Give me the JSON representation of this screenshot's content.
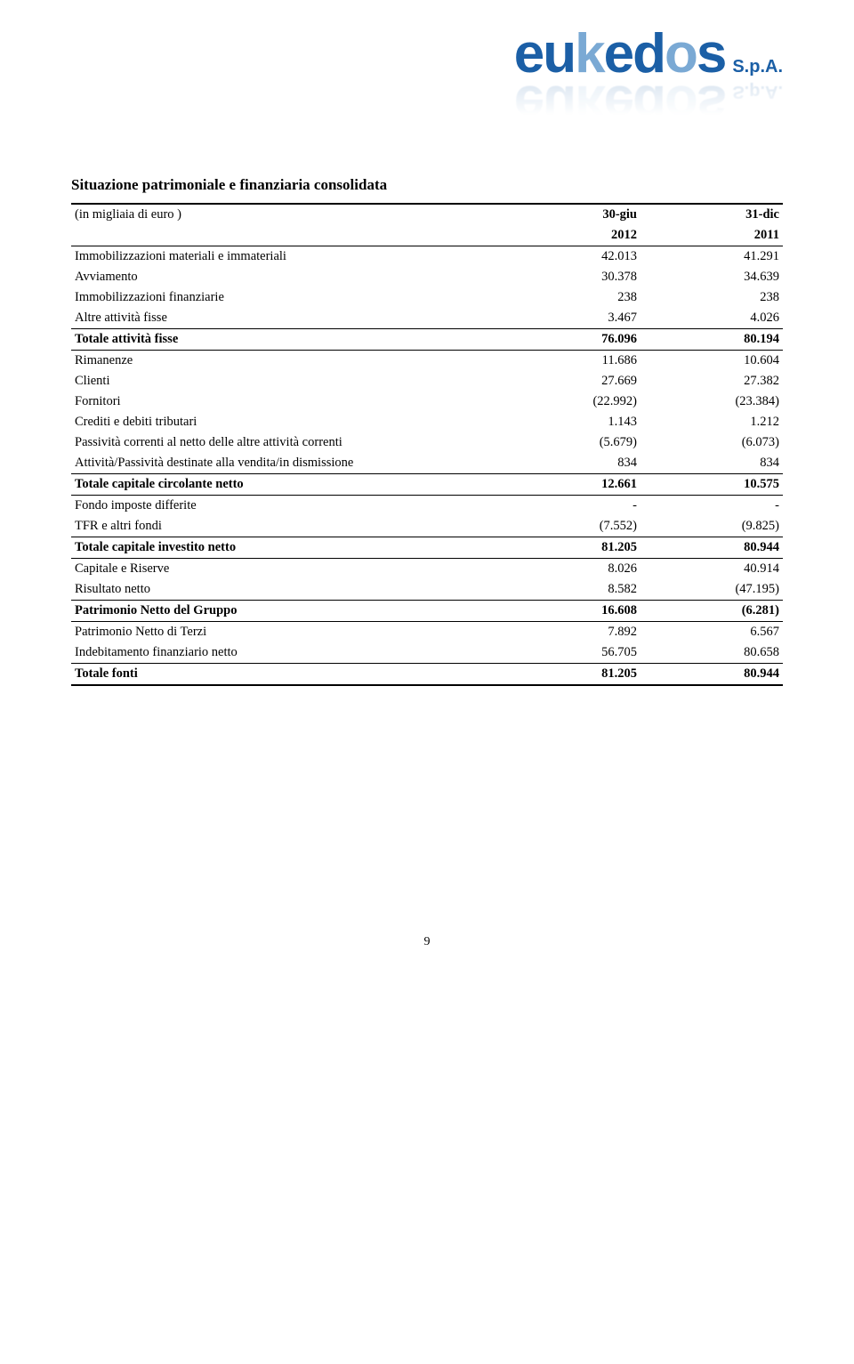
{
  "logo": {
    "name": "eukedos",
    "suffix": "S.p.A."
  },
  "title": "Situazione patrimoniale e finanziaria consolidata",
  "header": {
    "unit_label": "(in migliaia di euro )",
    "col1_top": "30-giu",
    "col2_top": "31-dic",
    "col1_yr": "2012",
    "col2_yr": "2011"
  },
  "rows": {
    "immob_mat": {
      "label": "Immobilizzazioni materiali e immateriali",
      "c1": "42.013",
      "c2": "41.291"
    },
    "avviamento": {
      "label": "Avviamento",
      "c1": "30.378",
      "c2": "34.639"
    },
    "immob_fin": {
      "label": "Immobilizzazioni finanziarie",
      "c1": "238",
      "c2": "238"
    },
    "altre_fisse": {
      "label": "Altre attività fisse",
      "c1": "3.467",
      "c2": "4.026"
    },
    "tot_fisse": {
      "label": "Totale attività fisse",
      "c1": "76.096",
      "c2": "80.194"
    },
    "rimanenze": {
      "label": "Rimanenze",
      "c1": "11.686",
      "c2": "10.604"
    },
    "clienti": {
      "label": "Clienti",
      "c1": "27.669",
      "c2": "27.382"
    },
    "fornitori": {
      "label": "Fornitori",
      "c1": "(22.992)",
      "c2": "(23.384)"
    },
    "crediti": {
      "label": "Crediti e debiti tributari",
      "c1": "1.143",
      "c2": "1.212"
    },
    "passcorr": {
      "label": "Passività correnti al netto delle altre attività correnti",
      "c1": "(5.679)",
      "c2": "(6.073)"
    },
    "attpass": {
      "label": "Attività/Passività destinate alla vendita/in dismissione",
      "c1": "834",
      "c2": "834"
    },
    "tot_circ": {
      "label": "Totale capitale circolante netto",
      "c1": "12.661",
      "c2": "10.575"
    },
    "fondo_imp": {
      "label": "Fondo imposte differite",
      "c1": "-",
      "c2": "-"
    },
    "tfr": {
      "label": "TFR e altri fondi",
      "c1": "(7.552)",
      "c2": "(9.825)"
    },
    "tot_inv": {
      "label": "Totale capitale investito netto",
      "c1": "81.205",
      "c2": "80.944"
    },
    "cap_ris": {
      "label": "Capitale e Riserve",
      "c1": "8.026",
      "c2": "40.914"
    },
    "ris_netto": {
      "label": "Risultato netto",
      "c1": "8.582",
      "c2": "(47.195)"
    },
    "patr_grp": {
      "label": "Patrimonio Netto del Gruppo",
      "c1": "16.608",
      "c2": "(6.281)"
    },
    "patr_terzi": {
      "label": "Patrimonio Netto di Terzi",
      "c1": "7.892",
      "c2": "6.567"
    },
    "indeb": {
      "label": "Indebitamento finanziario netto",
      "c1": "56.705",
      "c2": "80.658"
    },
    "tot_fonti": {
      "label": "Totale fonti",
      "c1": "81.205",
      "c2": "80.944"
    }
  },
  "page_number": "9"
}
